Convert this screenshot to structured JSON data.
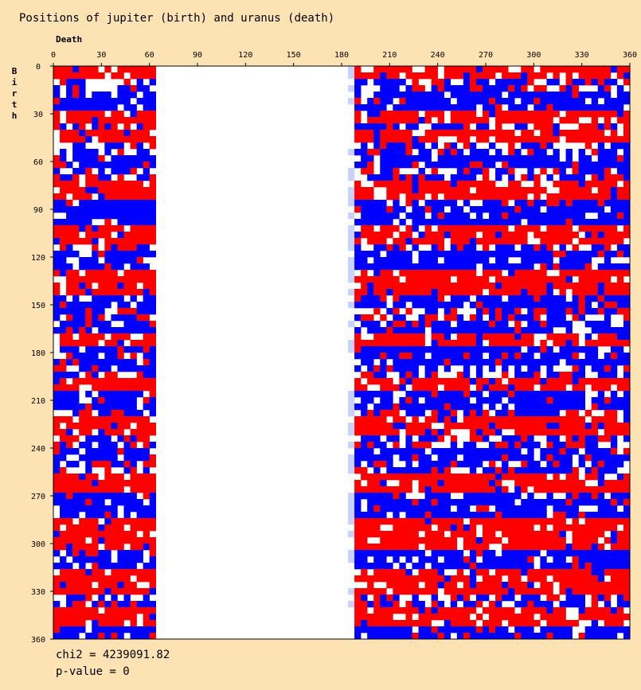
{
  "chart_data": {
    "type": "heatmap",
    "title": "Positions of jupiter (birth) and uranus (death)",
    "xlabel": "Death",
    "ylabel": "Birth",
    "xlim": [
      0,
      360
    ],
    "ylim": [
      0,
      360
    ],
    "x_ticks": [
      0,
      30,
      60,
      90,
      120,
      150,
      180,
      210,
      240,
      270,
      300,
      330,
      360
    ],
    "y_ticks": [
      0,
      30,
      60,
      90,
      120,
      150,
      180,
      210,
      240,
      270,
      300,
      330,
      360
    ],
    "empty_x_range": [
      62,
      183
    ],
    "colors": {
      "positive": "#ff0000",
      "negative": "#0000ff",
      "neutral": "#ffffff",
      "plot_bg": "#ffffff",
      "page_bg": "#fde3b4"
    },
    "row_bands": [
      {
        "from": 0,
        "to": 8,
        "sign": "positive"
      },
      {
        "from": 8,
        "to": 18,
        "sign": "mixed"
      },
      {
        "from": 18,
        "to": 28,
        "sign": "negative"
      },
      {
        "from": 28,
        "to": 36,
        "sign": "positive"
      },
      {
        "from": 36,
        "to": 42,
        "sign": "mixed"
      },
      {
        "from": 42,
        "to": 50,
        "sign": "positive"
      },
      {
        "from": 50,
        "to": 56,
        "sign": "mixed"
      },
      {
        "from": 56,
        "to": 66,
        "sign": "negative"
      },
      {
        "from": 66,
        "to": 74,
        "sign": "mixed"
      },
      {
        "from": 74,
        "to": 86,
        "sign": "positive"
      },
      {
        "from": 86,
        "to": 100,
        "sign": "negative"
      },
      {
        "from": 100,
        "to": 112,
        "sign": "positive"
      },
      {
        "from": 112,
        "to": 118,
        "sign": "mixed"
      },
      {
        "from": 118,
        "to": 130,
        "sign": "negative"
      },
      {
        "from": 130,
        "to": 144,
        "sign": "positive"
      },
      {
        "from": 144,
        "to": 154,
        "sign": "negative"
      },
      {
        "from": 154,
        "to": 160,
        "sign": "mixed"
      },
      {
        "from": 160,
        "to": 170,
        "sign": "negative"
      },
      {
        "from": 170,
        "to": 178,
        "sign": "positive"
      },
      {
        "from": 178,
        "to": 190,
        "sign": "negative"
      },
      {
        "from": 190,
        "to": 196,
        "sign": "mixed"
      },
      {
        "from": 196,
        "to": 206,
        "sign": "positive"
      },
      {
        "from": 206,
        "to": 216,
        "sign": "negative"
      },
      {
        "from": 216,
        "to": 222,
        "sign": "mixed"
      },
      {
        "from": 222,
        "to": 232,
        "sign": "positive"
      },
      {
        "from": 232,
        "to": 240,
        "sign": "mixed"
      },
      {
        "from": 240,
        "to": 250,
        "sign": "negative"
      },
      {
        "from": 250,
        "to": 256,
        "sign": "mixed"
      },
      {
        "from": 256,
        "to": 270,
        "sign": "positive"
      },
      {
        "from": 270,
        "to": 286,
        "sign": "negative"
      },
      {
        "from": 286,
        "to": 306,
        "sign": "positive"
      },
      {
        "from": 306,
        "to": 318,
        "sign": "negative"
      },
      {
        "from": 318,
        "to": 334,
        "sign": "positive"
      },
      {
        "from": 334,
        "to": 340,
        "sign": "mixed"
      },
      {
        "from": 340,
        "to": 354,
        "sign": "positive"
      },
      {
        "from": 354,
        "to": 360,
        "sign": "negative"
      }
    ],
    "stats": {
      "chi2_text": "chi2 = 4239091.82",
      "pvalue_text": "p-value = 0"
    }
  }
}
